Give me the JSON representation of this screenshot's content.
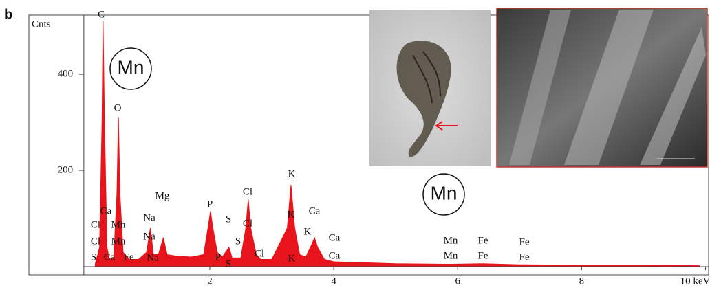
{
  "chart_data": {
    "type": "area",
    "panel_label": "b",
    "y_label": "Cnts",
    "xlim": [
      -0.92,
      10.05
    ],
    "ylim": [
      0,
      523
    ],
    "xticks": [
      2,
      4,
      6,
      8,
      {
        "value": 10,
        "label": "10 keV"
      }
    ],
    "yticks": [
      200,
      400
    ],
    "color": "#e8141b",
    "x": [
      0.15,
      0.22,
      0.26,
      0.277,
      0.3,
      0.34,
      0.38,
      0.45,
      0.5,
      0.525,
      0.55,
      0.6,
      0.7,
      0.85,
      0.98,
      1.04,
      1.09,
      1.17,
      1.25,
      1.31,
      1.45,
      1.7,
      1.9,
      1.97,
      2.01,
      2.05,
      2.12,
      2.2,
      2.31,
      2.36,
      2.5,
      2.58,
      2.62,
      2.66,
      2.75,
      2.82,
      3.0,
      3.25,
      3.31,
      3.37,
      3.45,
      3.55,
      3.64,
      3.69,
      3.74,
      3.85,
      4.0,
      4.5,
      5,
      5.9,
      6.4,
      7,
      8,
      9,
      9.9
    ],
    "values": [
      5,
      40,
      300,
      510,
      300,
      40,
      15,
      20,
      150,
      310,
      150,
      30,
      15,
      15,
      30,
      80,
      25,
      25,
      60,
      25,
      22,
      20,
      25,
      80,
      115,
      80,
      30,
      20,
      40,
      18,
      18,
      80,
      140,
      80,
      25,
      15,
      15,
      80,
      170,
      80,
      25,
      20,
      45,
      60,
      40,
      15,
      10,
      8,
      6,
      5,
      6,
      4,
      3,
      3,
      2
    ],
    "annotations": [
      "C",
      "O",
      "Mn",
      "Mg",
      "Na",
      "Na",
      "Na",
      "Cl",
      "Cl",
      "S",
      "Ca",
      "Mn",
      "Mn",
      "Ca",
      "Fe",
      "P",
      "P",
      "S",
      "S",
      "S",
      "Cl",
      "Cl",
      "Cl",
      "K",
      "K",
      "K",
      "K",
      "Ca",
      "Ca",
      "Ca",
      "Mn",
      "Mn",
      "Fe",
      "Fe",
      "Fe",
      "Fe",
      "Mn"
    ]
  }
}
